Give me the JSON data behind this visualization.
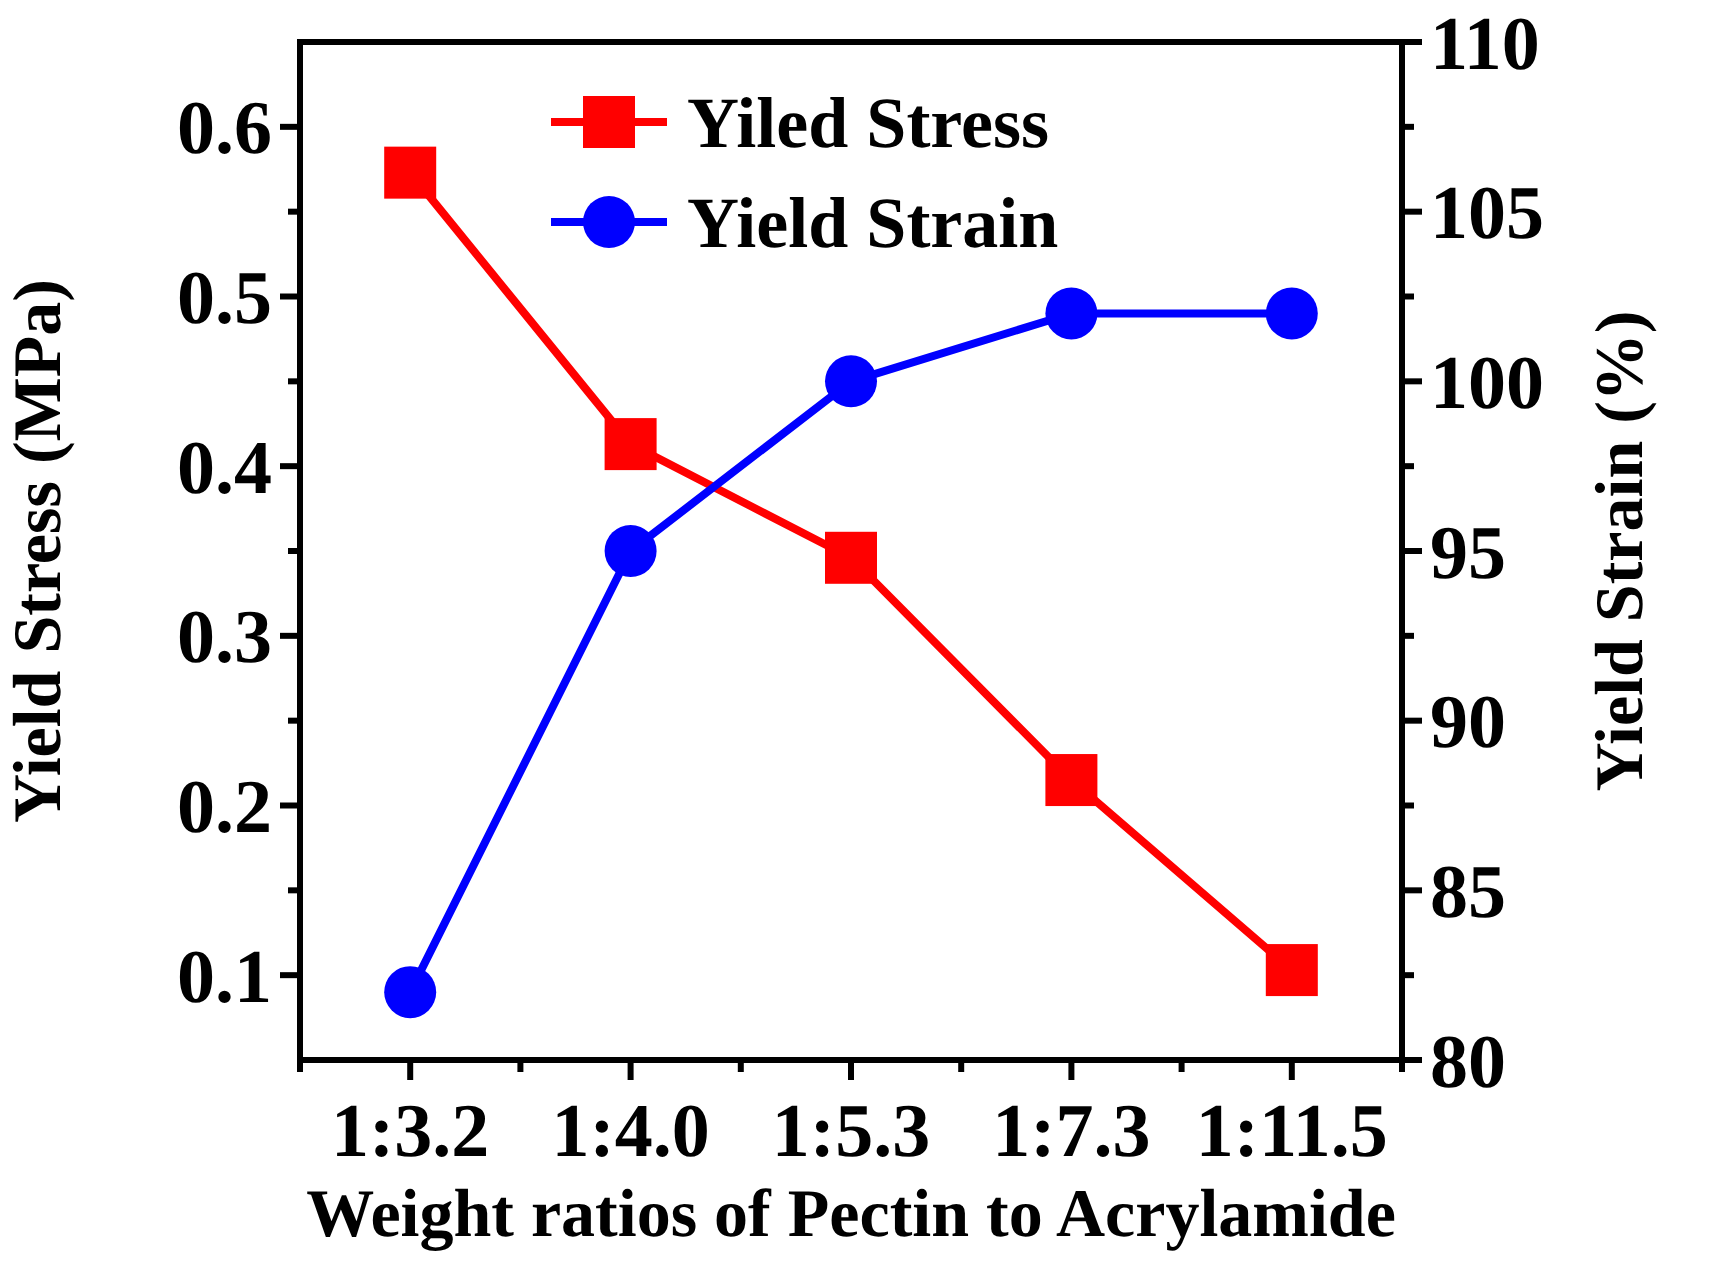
{
  "chart_data": {
    "type": "line",
    "xlabel": "Weight ratios of Pectin to Acrylamide",
    "ylabel": "Yield Stress (MPa)",
    "y2label": "Yield Strain (%)",
    "categories": [
      "1:3.2",
      "1:4.0",
      "1:5.3",
      "1:7.3",
      "1:11.5"
    ],
    "series": [
      {
        "name": "Yiled Stress",
        "color": "#ff0000",
        "marker": "square",
        "values": [
          0.573,
          0.413,
          0.346,
          0.215,
          0.103
        ]
      },
      {
        "name": "Yield Strain",
        "color": "#0000ff",
        "marker": "circle",
        "axis": "y2",
        "values": [
          82.0,
          95.0,
          100.0,
          102.0,
          102.0
        ]
      }
    ],
    "ylim": [
      0.05,
      0.65
    ],
    "yticks": [
      0.1,
      0.2,
      0.3,
      0.4,
      0.5,
      0.6
    ],
    "y2lim": [
      80,
      110
    ],
    "y2ticks": [
      80,
      85,
      90,
      95,
      100,
      105,
      110
    ],
    "legend": "top",
    "grid": false
  }
}
